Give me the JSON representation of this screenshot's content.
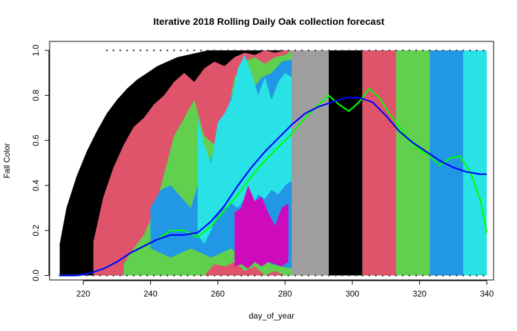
{
  "chart_data": {
    "type": "area",
    "title": "Iterative 2018 Rolling Daily Oak collection forecast",
    "xlabel": "day_of_year",
    "ylabel": "Fall Color",
    "xlim": [
      210,
      342
    ],
    "ylim": [
      -0.02,
      1.04
    ],
    "x_ticks": [
      220,
      240,
      260,
      280,
      300,
      320,
      340
    ],
    "y_ticks": [
      0.0,
      0.2,
      0.4,
      0.6,
      0.8,
      1.0
    ],
    "grid": false,
    "legend": "none",
    "colors": {
      "black": "#000000",
      "red": "#DF536B",
      "green": "#61D04F",
      "blue": "#2297E6",
      "cyan": "#28E2E5",
      "magenta": "#CD0BBC",
      "gray": "#9E9E9E",
      "mean_line": "#0000FF",
      "obs_line": "#00FF00"
    },
    "bands": [
      {
        "name": "black-envelope",
        "color": "#000000",
        "x": [
          213,
          215,
          218,
          221,
          224,
          227,
          230,
          233,
          236,
          239,
          242,
          245,
          248,
          251,
          254,
          257,
          260,
          263,
          266,
          269,
          272,
          275,
          278,
          281
        ],
        "upper": [
          0.14,
          0.3,
          0.44,
          0.55,
          0.64,
          0.72,
          0.78,
          0.83,
          0.87,
          0.9,
          0.93,
          0.95,
          0.97,
          0.98,
          0.99,
          1.0,
          1.0,
          1.0,
          1.0,
          1.0,
          1.0,
          1.0,
          1.0,
          1.0
        ],
        "lower": [
          0,
          0,
          0,
          0,
          0,
          0,
          0,
          0,
          0,
          0,
          0,
          0,
          0,
          0,
          0,
          0,
          0,
          0,
          0,
          0,
          0,
          0,
          0,
          0
        ]
      },
      {
        "name": "red-envelope",
        "color": "#DF536B",
        "x": [
          223,
          226,
          229,
          232,
          235,
          238,
          241,
          244,
          247,
          250,
          253,
          256,
          259,
          262,
          265,
          268,
          271,
          274,
          277,
          280,
          282
        ],
        "upper": [
          0.15,
          0.35,
          0.48,
          0.58,
          0.66,
          0.7,
          0.76,
          0.8,
          0.86,
          0.9,
          0.86,
          0.92,
          0.95,
          0.93,
          0.97,
          0.99,
          0.98,
          1.0,
          0.99,
          1.0,
          1.0
        ],
        "lower": [
          0,
          0,
          0,
          0,
          0,
          0,
          0,
          0,
          0,
          0,
          0,
          0,
          0,
          0,
          0,
          0,
          0,
          0,
          0,
          0,
          0
        ]
      },
      {
        "name": "green-envelope",
        "color": "#61D04F",
        "x": [
          232,
          235,
          238,
          241,
          244,
          247,
          250,
          253,
          256,
          259,
          262,
          265,
          268,
          271,
          274,
          277,
          280,
          282
        ],
        "upper": [
          0.05,
          0.12,
          0.18,
          0.28,
          0.45,
          0.62,
          0.7,
          0.78,
          0.62,
          0.58,
          0.66,
          0.88,
          0.95,
          0.97,
          0.94,
          0.97,
          0.98,
          1.0
        ],
        "lower": [
          0,
          0,
          0,
          0,
          0,
          0,
          0,
          0,
          0,
          0.05,
          0.04,
          0.06,
          0.02,
          0.04,
          0,
          0.02,
          0,
          0
        ]
      },
      {
        "name": "blue-envelope",
        "color": "#2297E6",
        "x": [
          240,
          243,
          246,
          249,
          252,
          255,
          258,
          261,
          264,
          267,
          270,
          273,
          276,
          279,
          282
        ],
        "upper": [
          0.3,
          0.38,
          0.4,
          0.35,
          0.3,
          0.45,
          0.52,
          0.62,
          0.8,
          0.86,
          0.82,
          0.88,
          0.9,
          0.95,
          0.96
        ],
        "lower": [
          0.12,
          0.1,
          0.08,
          0.1,
          0.12,
          0.1,
          0.08,
          0.1,
          0.12,
          0.08,
          0.06,
          0.08,
          0.05,
          0.04,
          0.03
        ]
      },
      {
        "name": "cyan-envelope",
        "color": "#28E2E5",
        "x": [
          254,
          256,
          258,
          260,
          262,
          264,
          266,
          268,
          270,
          272,
          274,
          276,
          278,
          280,
          282
        ],
        "upper": [
          0.7,
          0.58,
          0.5,
          0.68,
          0.72,
          0.78,
          0.92,
          0.98,
          0.9,
          0.8,
          0.88,
          0.78,
          0.86,
          0.9,
          0.88
        ],
        "lower": [
          0.18,
          0.14,
          0.2,
          0.28,
          0.3,
          0.32,
          0.3,
          0.34,
          0.3,
          0.36,
          0.34,
          0.38,
          0.36,
          0.4,
          0.42
        ]
      },
      {
        "name": "magenta-envelope",
        "color": "#CD0BBC",
        "x": [
          265,
          267,
          269,
          271,
          273,
          275,
          277,
          279,
          281
        ],
        "upper": [
          0.28,
          0.3,
          0.4,
          0.33,
          0.35,
          0.28,
          0.22,
          0.3,
          0.32
        ],
        "lower": [
          0.04,
          0.05,
          0.03,
          0.06,
          0.04,
          0.06,
          0.05,
          0.04,
          0.06
        ]
      }
    ],
    "solid_blocks": [
      {
        "x0": 282,
        "x1": 293,
        "color": "#9E9E9E",
        "upper": 1.0
      },
      {
        "x0": 293,
        "x1": 303,
        "color": "#000000",
        "upper": 1.0
      },
      {
        "x0": 303,
        "x1": 313,
        "color": "#DF536B",
        "upper": 1.0
      },
      {
        "x0": 313,
        "x1": 323,
        "color": "#61D04F",
        "upper": 1.0
      },
      {
        "x0": 323,
        "x1": 333,
        "color": "#2297E6",
        "upper": 1.0
      },
      {
        "x0": 333,
        "x1": 340,
        "color": "#28E2E5",
        "upper": 1.0
      }
    ],
    "series": [
      {
        "color": "#00FF00",
        "x": [
          213,
          218,
          222,
          226,
          230,
          234,
          238,
          242,
          246,
          250,
          254,
          258,
          262,
          266,
          270,
          274,
          278,
          282,
          286,
          290,
          293,
          296,
          299,
          302,
          305,
          308,
          311,
          314,
          317,
          320,
          323,
          326,
          329,
          332,
          335,
          338,
          340
        ],
        "y": [
          0.0,
          0.0,
          0.01,
          0.03,
          0.06,
          0.1,
          0.13,
          0.16,
          0.2,
          0.2,
          0.17,
          0.22,
          0.29,
          0.36,
          0.44,
          0.51,
          0.57,
          0.63,
          0.7,
          0.76,
          0.8,
          0.76,
          0.73,
          0.77,
          0.83,
          0.79,
          0.72,
          0.66,
          0.6,
          0.56,
          0.53,
          0.49,
          0.52,
          0.53,
          0.46,
          0.34,
          0.19
        ]
      },
      {
        "color": "#0000FF",
        "x": [
          213,
          218,
          222,
          226,
          230,
          234,
          238,
          242,
          246,
          250,
          254,
          258,
          262,
          266,
          270,
          274,
          278,
          282,
          286,
          290,
          294,
          298,
          302,
          306,
          310,
          314,
          318,
          322,
          326,
          330,
          334,
          338,
          340
        ],
        "y": [
          0.0,
          0.0,
          0.01,
          0.03,
          0.06,
          0.1,
          0.13,
          0.16,
          0.18,
          0.18,
          0.19,
          0.24,
          0.31,
          0.4,
          0.48,
          0.55,
          0.61,
          0.67,
          0.72,
          0.75,
          0.77,
          0.79,
          0.79,
          0.77,
          0.71,
          0.64,
          0.59,
          0.55,
          0.51,
          0.48,
          0.46,
          0.45,
          0.45
        ]
      }
    ],
    "observation_points_low": [
      213,
      215,
      217,
      219,
      221,
      223,
      225,
      227,
      229,
      231,
      233,
      235,
      237,
      239,
      241,
      243,
      245,
      247,
      249,
      251,
      253,
      255,
      257,
      259,
      261,
      263,
      265,
      267,
      269,
      271,
      273,
      275,
      277,
      279,
      281,
      283,
      285,
      287,
      289,
      291,
      293,
      295,
      297,
      299,
      301,
      303,
      305,
      307,
      309,
      311,
      313,
      315,
      317,
      319,
      321,
      323,
      325,
      327,
      329,
      331,
      333,
      335,
      337,
      339
    ],
    "observation_points_high": [
      227,
      229,
      231,
      233,
      235,
      237,
      239,
      241,
      243,
      245,
      247,
      249,
      251,
      253,
      255,
      257,
      259,
      261,
      263,
      265,
      267,
      269,
      271,
      273,
      275,
      277,
      279,
      281,
      283,
      285,
      287,
      289,
      291,
      293,
      295,
      297,
      299,
      301,
      303,
      305,
      307,
      309,
      311,
      313,
      315,
      317,
      319,
      321,
      323,
      325,
      327,
      329,
      331,
      333,
      335,
      337,
      339
    ]
  }
}
